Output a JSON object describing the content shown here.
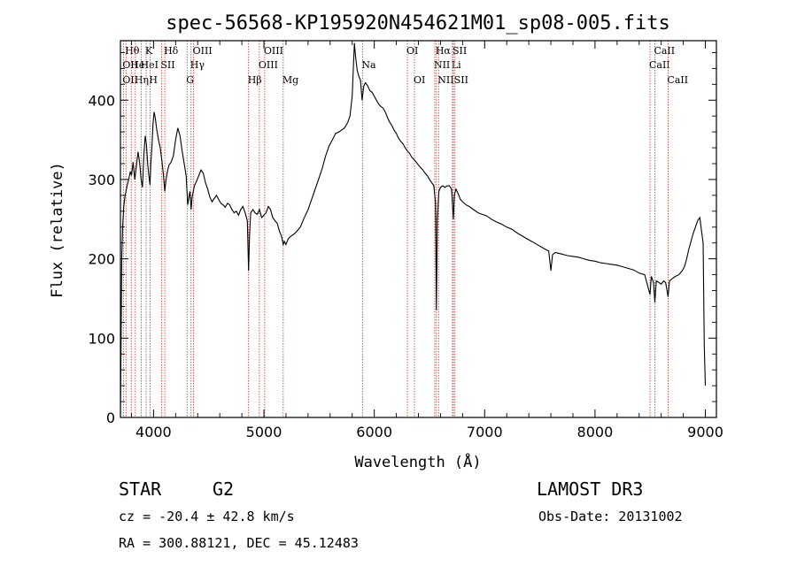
{
  "chart_data": {
    "type": "line",
    "title": "spec-56568-KP195920N454621M01_sp08-005.fits",
    "xlabel": "Wavelength (Å)",
    "ylabel": "Flux (relative)",
    "xlim": [
      3700,
      9100
    ],
    "ylim": [
      0,
      475
    ],
    "x_ticks": [
      4000,
      5000,
      6000,
      7000,
      8000,
      9000
    ],
    "y_ticks": [
      0,
      100,
      200,
      300,
      400
    ],
    "series": [
      {
        "name": "spectrum",
        "points": [
          [
            3700,
            5
          ],
          [
            3705,
            80
          ],
          [
            3712,
            200
          ],
          [
            3720,
            240
          ],
          [
            3730,
            265
          ],
          [
            3740,
            278
          ],
          [
            3760,
            292
          ],
          [
            3775,
            300
          ],
          [
            3790,
            310
          ],
          [
            3800,
            305
          ],
          [
            3815,
            322
          ],
          [
            3830,
            300
          ],
          [
            3845,
            318
          ],
          [
            3860,
            335
          ],
          [
            3875,
            320
          ],
          [
            3888,
            300
          ],
          [
            3900,
            290
          ],
          [
            3912,
            330
          ],
          [
            3925,
            355
          ],
          [
            3935,
            345
          ],
          [
            3948,
            318
          ],
          [
            3955,
            308
          ],
          [
            3968,
            293
          ],
          [
            3975,
            320
          ],
          [
            3985,
            340
          ],
          [
            3995,
            370
          ],
          [
            4005,
            385
          ],
          [
            4015,
            378
          ],
          [
            4030,
            362
          ],
          [
            4045,
            350
          ],
          [
            4060,
            340
          ],
          [
            4075,
            325
          ],
          [
            4090,
            305
          ],
          [
            4102,
            285
          ],
          [
            4112,
            298
          ],
          [
            4125,
            310
          ],
          [
            4140,
            318
          ],
          [
            4160,
            322
          ],
          [
            4180,
            330
          ],
          [
            4200,
            350
          ],
          [
            4220,
            365
          ],
          [
            4240,
            355
          ],
          [
            4260,
            335
          ],
          [
            4280,
            318
          ],
          [
            4295,
            305
          ],
          [
            4310,
            268
          ],
          [
            4320,
            278
          ],
          [
            4330,
            285
          ],
          [
            4340,
            262
          ],
          [
            4350,
            278
          ],
          [
            4370,
            292
          ],
          [
            4390,
            298
          ],
          [
            4410,
            305
          ],
          [
            4430,
            312
          ],
          [
            4450,
            308
          ],
          [
            4470,
            296
          ],
          [
            4490,
            288
          ],
          [
            4510,
            278
          ],
          [
            4530,
            272
          ],
          [
            4550,
            276
          ],
          [
            4570,
            280
          ],
          [
            4590,
            275
          ],
          [
            4610,
            270
          ],
          [
            4630,
            268
          ],
          [
            4650,
            265
          ],
          [
            4670,
            270
          ],
          [
            4690,
            268
          ],
          [
            4710,
            262
          ],
          [
            4730,
            258
          ],
          [
            4750,
            260
          ],
          [
            4770,
            255
          ],
          [
            4790,
            262
          ],
          [
            4810,
            266
          ],
          [
            4830,
            258
          ],
          [
            4850,
            248
          ],
          [
            4861,
            185
          ],
          [
            4870,
            230
          ],
          [
            4880,
            258
          ],
          [
            4900,
            262
          ],
          [
            4920,
            258
          ],
          [
            4940,
            256
          ],
          [
            4960,
            262
          ],
          [
            4980,
            252
          ],
          [
            5000,
            255
          ],
          [
            5020,
            258
          ],
          [
            5040,
            266
          ],
          [
            5060,
            262
          ],
          [
            5080,
            252
          ],
          [
            5100,
            248
          ],
          [
            5120,
            245
          ],
          [
            5140,
            235
          ],
          [
            5160,
            228
          ],
          [
            5175,
            218
          ],
          [
            5185,
            222
          ],
          [
            5200,
            218
          ],
          [
            5220,
            225
          ],
          [
            5240,
            228
          ],
          [
            5260,
            230
          ],
          [
            5280,
            232
          ],
          [
            5300,
            235
          ],
          [
            5330,
            240
          ],
          [
            5360,
            250
          ],
          [
            5400,
            262
          ],
          [
            5450,
            282
          ],
          [
            5500,
            302
          ],
          [
            5530,
            315
          ],
          [
            5560,
            330
          ],
          [
            5590,
            342
          ],
          [
            5620,
            350
          ],
          [
            5650,
            358
          ],
          [
            5680,
            360
          ],
          [
            5700,
            362
          ],
          [
            5730,
            365
          ],
          [
            5760,
            372
          ],
          [
            5780,
            380
          ],
          [
            5800,
            405
          ],
          [
            5810,
            440
          ],
          [
            5820,
            472
          ],
          [
            5830,
            455
          ],
          [
            5845,
            438
          ],
          [
            5860,
            430
          ],
          [
            5875,
            425
          ],
          [
            5890,
            400
          ],
          [
            5905,
            418
          ],
          [
            5920,
            422
          ],
          [
            5940,
            418
          ],
          [
            5960,
            412
          ],
          [
            5980,
            410
          ],
          [
            6000,
            405
          ],
          [
            6020,
            400
          ],
          [
            6040,
            395
          ],
          [
            6060,
            392
          ],
          [
            6080,
            390
          ],
          [
            6100,
            385
          ],
          [
            6120,
            378
          ],
          [
            6140,
            372
          ],
          [
            6160,
            368
          ],
          [
            6180,
            362
          ],
          [
            6200,
            358
          ],
          [
            6220,
            352
          ],
          [
            6240,
            348
          ],
          [
            6260,
            345
          ],
          [
            6280,
            340
          ],
          [
            6300,
            336
          ],
          [
            6320,
            333
          ],
          [
            6340,
            328
          ],
          [
            6360,
            325
          ],
          [
            6380,
            322
          ],
          [
            6400,
            318
          ],
          [
            6420,
            315
          ],
          [
            6440,
            312
          ],
          [
            6460,
            308
          ],
          [
            6480,
            305
          ],
          [
            6500,
            300
          ],
          [
            6520,
            296
          ],
          [
            6540,
            292
          ],
          [
            6555,
            270
          ],
          [
            6563,
            135
          ],
          [
            6572,
            250
          ],
          [
            6585,
            285
          ],
          [
            6600,
            290
          ],
          [
            6620,
            292
          ],
          [
            6640,
            290
          ],
          [
            6660,
            292
          ],
          [
            6680,
            292
          ],
          [
            6700,
            288
          ],
          [
            6717,
            250
          ],
          [
            6725,
            280
          ],
          [
            6740,
            288
          ],
          [
            6760,
            282
          ],
          [
            6780,
            275
          ],
          [
            6800,
            272
          ],
          [
            6830,
            268
          ],
          [
            6860,
            266
          ],
          [
            6900,
            262
          ],
          [
            6940,
            258
          ],
          [
            6980,
            256
          ],
          [
            7020,
            254
          ],
          [
            7060,
            250
          ],
          [
            7100,
            247
          ],
          [
            7150,
            244
          ],
          [
            7200,
            240
          ],
          [
            7250,
            237
          ],
          [
            7300,
            232
          ],
          [
            7350,
            228
          ],
          [
            7400,
            224
          ],
          [
            7450,
            220
          ],
          [
            7500,
            216
          ],
          [
            7550,
            212
          ],
          [
            7580,
            210
          ],
          [
            7600,
            185
          ],
          [
            7615,
            205
          ],
          [
            7640,
            208
          ],
          [
            7700,
            206
          ],
          [
            7750,
            204
          ],
          [
            7800,
            203
          ],
          [
            7850,
            202
          ],
          [
            7900,
            200
          ],
          [
            7950,
            198
          ],
          [
            8000,
            197
          ],
          [
            8050,
            195
          ],
          [
            8100,
            194
          ],
          [
            8150,
            193
          ],
          [
            8200,
            192
          ],
          [
            8250,
            190
          ],
          [
            8300,
            188
          ],
          [
            8350,
            186
          ],
          [
            8400,
            182
          ],
          [
            8450,
            180
          ],
          [
            8498,
            155
          ],
          [
            8510,
            178
          ],
          [
            8530,
            170
          ],
          [
            8542,
            145
          ],
          [
            8555,
            172
          ],
          [
            8580,
            170
          ],
          [
            8600,
            168
          ],
          [
            8620,
            172
          ],
          [
            8640,
            170
          ],
          [
            8662,
            152
          ],
          [
            8675,
            172
          ],
          [
            8700,
            175
          ],
          [
            8730,
            178
          ],
          [
            8760,
            180
          ],
          [
            8790,
            185
          ],
          [
            8810,
            190
          ],
          [
            8830,
            200
          ],
          [
            8850,
            212
          ],
          [
            8870,
            222
          ],
          [
            8890,
            232
          ],
          [
            8910,
            240
          ],
          [
            8930,
            248
          ],
          [
            8950,
            252
          ],
          [
            8965,
            235
          ],
          [
            8980,
            220
          ],
          [
            8990,
            90
          ],
          [
            9000,
            40
          ]
        ]
      }
    ],
    "line_markers": [
      {
        "wl": 3727,
        "label": "OII",
        "row": 2
      },
      {
        "wl": 3727,
        "label": "OII",
        "row": 3
      },
      {
        "wl": 3750,
        "label": "Hθ",
        "row": 1
      },
      {
        "wl": 3798,
        "label": "He",
        "row": 2
      },
      {
        "wl": 3835,
        "label": "Hη",
        "row": 3
      },
      {
        "wl": 3889,
        "label": "HeI",
        "row": 2
      },
      {
        "wl": 3933,
        "label": "K",
        "row": 1
      },
      {
        "wl": 3968,
        "label": "H",
        "row": 3
      },
      {
        "wl": 4072,
        "label": "SII",
        "row": 2
      },
      {
        "wl": 4102,
        "label": "Hδ",
        "row": 1
      },
      {
        "wl": 4304,
        "label": "G",
        "row": 3
      },
      {
        "wl": 4340,
        "label": "Hγ",
        "row": 2
      },
      {
        "wl": 4363,
        "label": "OIII",
        "row": 1
      },
      {
        "wl": 4861,
        "label": "Hβ",
        "row": 3
      },
      {
        "wl": 4959,
        "label": "OIII",
        "row": 2
      },
      {
        "wl": 5007,
        "label": "OIII",
        "row": 1
      },
      {
        "wl": 5175,
        "label": "Mg",
        "row": 3
      },
      {
        "wl": 5893,
        "label": "Na",
        "row": 2
      },
      {
        "wl": 6300,
        "label": "OI",
        "row": 1
      },
      {
        "wl": 6364,
        "label": "OI",
        "row": 3
      },
      {
        "wl": 6548,
        "label": "NII",
        "row": 2
      },
      {
        "wl": 6563,
        "label": "Hα",
        "row": 1
      },
      {
        "wl": 6583,
        "label": "NII",
        "row": 3
      },
      {
        "wl": 6708,
        "label": "Li",
        "row": 2
      },
      {
        "wl": 6717,
        "label": "SII",
        "row": 1
      },
      {
        "wl": 6731,
        "label": "SII",
        "row": 3
      },
      {
        "wl": 8498,
        "label": "CaII",
        "row": 2
      },
      {
        "wl": 8542,
        "label": "CaII",
        "row": 1
      },
      {
        "wl": 8662,
        "label": "CaII",
        "row": 3
      }
    ]
  },
  "info": {
    "class": "STAR",
    "subclass": "G2",
    "survey": "LAMOST DR3",
    "redshift": "cz = -20.4 ± 42.8 km/s",
    "obs_date": "Obs-Date: 20131002",
    "coords": "RA = 300.88121, DEC =  45.12483"
  },
  "colors": {
    "spectrum": "#000000",
    "marker": "#c0392b",
    "axis": "#000000",
    "background": "#ffffff"
  }
}
